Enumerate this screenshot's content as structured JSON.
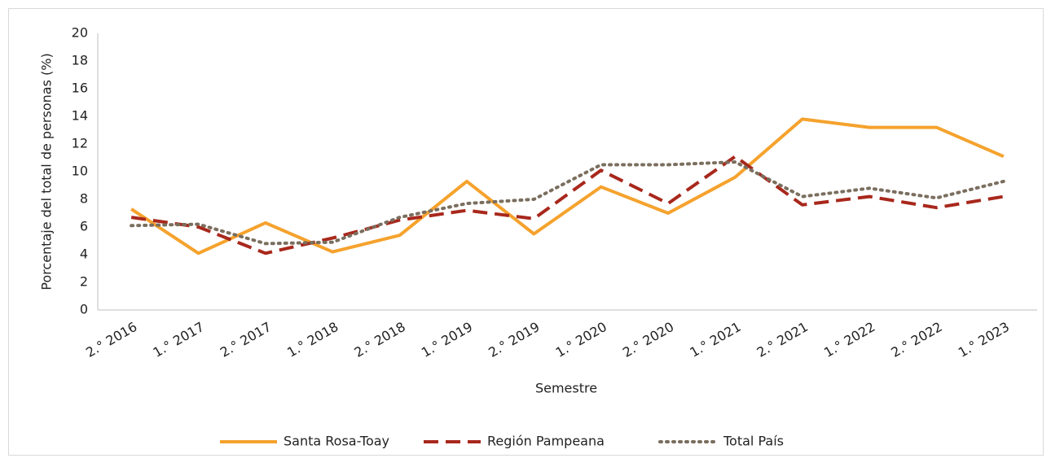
{
  "chart_data": {
    "type": "line",
    "x_label": "Semestre",
    "y_label": "Porcentaje del total de personas (%)",
    "categories": [
      "2.° 2016",
      "1.° 2017",
      "2.° 2017",
      "1.° 2018",
      "2.° 2018",
      "1.° 2019",
      "2.° 2019",
      "1.° 2020",
      "2.° 2020",
      "1.° 2021",
      "2.° 2021",
      "1.° 2022",
      "2.° 2022",
      "1.° 2023"
    ],
    "series": [
      {
        "name": "Santa Rosa-Toay",
        "color": "#f5a22d",
        "dash": "solid",
        "values": [
          7.3,
          4.1,
          6.3,
          4.2,
          5.4,
          9.3,
          5.5,
          8.9,
          7.0,
          9.6,
          13.8,
          13.2,
          13.2,
          11.1
        ]
      },
      {
        "name": "Región Pampeana",
        "color": "#a8281c",
        "dash": "dashed",
        "values": [
          6.7,
          6.0,
          4.1,
          5.2,
          6.5,
          7.2,
          6.6,
          10.1,
          7.7,
          11.1,
          7.6,
          8.2,
          7.4,
          8.2
        ]
      },
      {
        "name": "Total País",
        "color": "#7a6e5e",
        "dash": "dotted",
        "values": [
          6.1,
          6.2,
          4.8,
          4.9,
          6.7,
          7.7,
          8.0,
          10.5,
          10.5,
          10.7,
          8.2,
          8.8,
          8.1,
          9.3
        ]
      }
    ],
    "ylim": [
      0,
      20
    ],
    "yticks": [
      0,
      2,
      4,
      6,
      8,
      10,
      12,
      14,
      16,
      18,
      20
    ],
    "grid": false,
    "legend": "bottom"
  }
}
